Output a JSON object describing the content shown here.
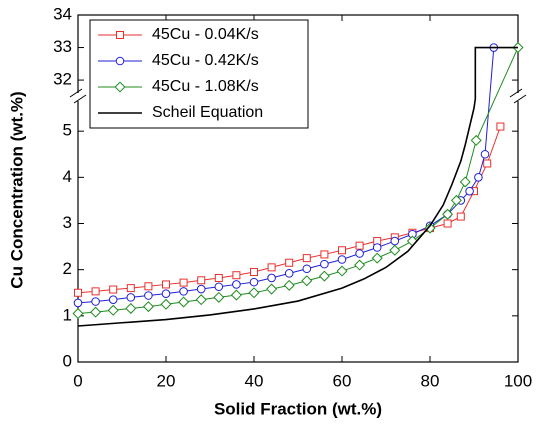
{
  "chart_data": {
    "type": "line",
    "xlabel": "Solid Fraction (wt.%)",
    "ylabel": "Cu Concentration (wt.%)",
    "xlim": [
      0,
      100
    ],
    "xticks": [
      0,
      20,
      40,
      60,
      80,
      100
    ],
    "ylim": [
      0,
      34
    ],
    "ybreak": [
      5.74,
      31.48
    ],
    "yticks": [
      0,
      1,
      2,
      3,
      4,
      5,
      32,
      33,
      34
    ],
    "legend": "upper-left",
    "series": [
      {
        "name": "45Cu - 0.04K/s",
        "color": "#e8312f",
        "marker": "square",
        "x": [
          0,
          4,
          8,
          12,
          16,
          20,
          24,
          28,
          32,
          36,
          40,
          44,
          48,
          52,
          56,
          60,
          64,
          68,
          72,
          76,
          80,
          84,
          87,
          90,
          93,
          96
        ],
        "values": [
          1.5,
          1.53,
          1.57,
          1.6,
          1.64,
          1.68,
          1.72,
          1.77,
          1.82,
          1.88,
          1.95,
          2.05,
          2.15,
          2.25,
          2.33,
          2.42,
          2.52,
          2.62,
          2.7,
          2.8,
          2.9,
          3.0,
          3.15,
          3.7,
          4.3,
          5.1
        ]
      },
      {
        "name": "45Cu - 0.42K/s",
        "color": "#1f1fd6",
        "marker": "circle",
        "x": [
          0,
          4,
          8,
          12,
          16,
          20,
          24,
          28,
          32,
          36,
          40,
          44,
          48,
          52,
          56,
          60,
          64,
          68,
          72,
          76,
          80,
          84,
          87,
          89,
          91,
          92.5,
          94.5
        ],
        "values": [
          1.28,
          1.31,
          1.35,
          1.4,
          1.44,
          1.48,
          1.53,
          1.58,
          1.63,
          1.68,
          1.73,
          1.82,
          1.92,
          2.02,
          2.12,
          2.22,
          2.35,
          2.48,
          2.62,
          2.77,
          2.95,
          3.2,
          3.5,
          3.7,
          4.0,
          4.5,
          33
        ]
      },
      {
        "name": "45Cu - 1.08K/s",
        "color": "#1e8c1e",
        "marker": "diamond",
        "x": [
          0,
          4,
          8,
          12,
          16,
          20,
          24,
          28,
          32,
          36,
          40,
          44,
          48,
          52,
          56,
          60,
          64,
          68,
          72,
          76,
          80,
          84,
          86,
          88,
          90.5,
          100
        ],
        "values": [
          1.05,
          1.08,
          1.12,
          1.16,
          1.2,
          1.25,
          1.3,
          1.35,
          1.4,
          1.45,
          1.5,
          1.58,
          1.66,
          1.76,
          1.86,
          1.97,
          2.1,
          2.25,
          2.42,
          2.62,
          2.9,
          3.2,
          3.5,
          3.9,
          4.8,
          33
        ]
      },
      {
        "name": "Scheil Equation",
        "color": "#000000",
        "marker": "none",
        "x": [
          0,
          10,
          20,
          30,
          40,
          50,
          60,
          65,
          70,
          75,
          80,
          83,
          85,
          87,
          88,
          89,
          90,
          90.3,
          90.3,
          100
        ],
        "values": [
          0.78,
          0.85,
          0.92,
          1.02,
          1.15,
          1.32,
          1.6,
          1.8,
          2.05,
          2.4,
          2.95,
          3.4,
          3.85,
          4.35,
          4.7,
          5.1,
          5.5,
          5.7,
          33,
          33
        ]
      }
    ]
  }
}
